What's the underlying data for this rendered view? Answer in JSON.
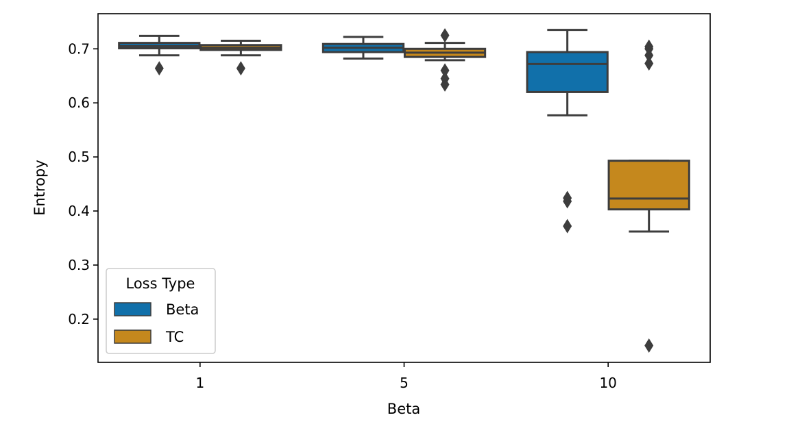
{
  "chart_data": {
    "type": "box",
    "xlabel": "Beta",
    "ylabel": "Entropy",
    "categories": [
      "1",
      "5",
      "10"
    ],
    "ylim": [
      0.12,
      0.765
    ],
    "yticks": [
      0.2,
      0.3,
      0.4,
      0.5,
      0.6,
      0.7
    ],
    "ytick_labels": [
      "0.2",
      "0.3",
      "0.4",
      "0.5",
      "0.6",
      "0.7"
    ],
    "grid": false,
    "legend": {
      "title": "Loss Type",
      "placement": "lower-left",
      "entries": [
        "Beta",
        "TC"
      ]
    },
    "series": [
      {
        "name": "Beta",
        "color": "#1170aa",
        "boxes": [
          {
            "category": "1",
            "whisker_low": 0.688,
            "q1": 0.701,
            "median": 0.705,
            "q3": 0.711,
            "whisker_high": 0.724,
            "outliers": [
              0.664
            ]
          },
          {
            "category": "5",
            "whisker_low": 0.682,
            "q1": 0.694,
            "median": 0.702,
            "q3": 0.709,
            "whisker_high": 0.722,
            "outliers": []
          },
          {
            "category": "10",
            "whisker_low": 0.577,
            "q1": 0.62,
            "median": 0.672,
            "q3": 0.694,
            "whisker_high": 0.735,
            "outliers": [
              0.424,
              0.418,
              0.372
            ]
          }
        ]
      },
      {
        "name": "TC",
        "color": "#c5881d",
        "boxes": [
          {
            "category": "1",
            "whisker_low": 0.688,
            "q1": 0.698,
            "median": 0.702,
            "q3": 0.707,
            "whisker_high": 0.715,
            "outliers": [
              0.664
            ]
          },
          {
            "category": "5",
            "whisker_low": 0.679,
            "q1": 0.685,
            "median": 0.693,
            "q3": 0.7,
            "whisker_high": 0.711,
            "outliers": [
              0.725,
              0.66,
              0.645,
              0.634
            ]
          },
          {
            "category": "10",
            "whisker_low": 0.362,
            "q1": 0.403,
            "median": 0.423,
            "q3": 0.493,
            "whisker_high": 0.493,
            "outliers": [
              0.704,
              0.7,
              0.688,
              0.673,
              0.151
            ]
          }
        ]
      }
    ],
    "colors": {
      "edge": "#3d3d3d",
      "axis": "#000000"
    }
  }
}
